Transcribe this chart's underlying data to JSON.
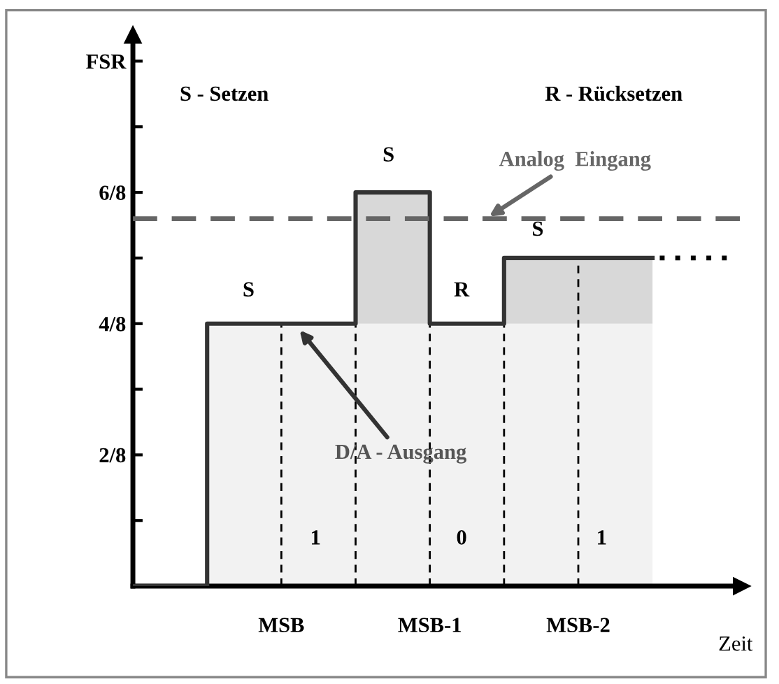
{
  "chart_data": {
    "type": "step",
    "categories": [
      null,
      null,
      "MSB",
      null,
      "MSB-1",
      null,
      "MSB-2",
      null,
      null
    ],
    "series": [
      {
        "color": "#333333",
        "values": [
          0,
          0.5,
          0.5,
          0.75,
          0.5,
          0.625,
          0.625,
          0.625,
          null
        ]
      },
      {
        "type": "line",
        "color": "#000000",
        "line_style": "dotted",
        "values": [
          null,
          null,
          null,
          null,
          null,
          null,
          null,
          0.625,
          0.625
        ]
      }
    ],
    "ylim": [
      0,
      1.05
    ],
    "yticks": [
      {
        "value": 0.125,
        "label": null
      },
      {
        "value": 0.25,
        "label": "2/8"
      },
      {
        "value": 0.375,
        "label": null
      },
      {
        "value": 0.5,
        "label": "4/8"
      },
      {
        "value": 0.625,
        "label": null
      },
      {
        "value": 0.75,
        "label": "6/8"
      },
      {
        "value": 0.875,
        "label": null
      },
      {
        "value": 1,
        "label": "FSR"
      }
    ],
    "xlabel": "Zeit",
    "ref_lines": [
      {
        "axis": "y",
        "value": 0.7,
        "label": "Analog  Eingang",
        "color": "#666666",
        "line_style": "dashed"
      }
    ],
    "annotations": [
      "S - Setzen",
      "R - Rücksetzen",
      "D/A - Ausgang",
      "S",
      "S",
      "R",
      "S",
      "1",
      "0",
      "1"
    ],
    "grid": false,
    "legend": false
  }
}
